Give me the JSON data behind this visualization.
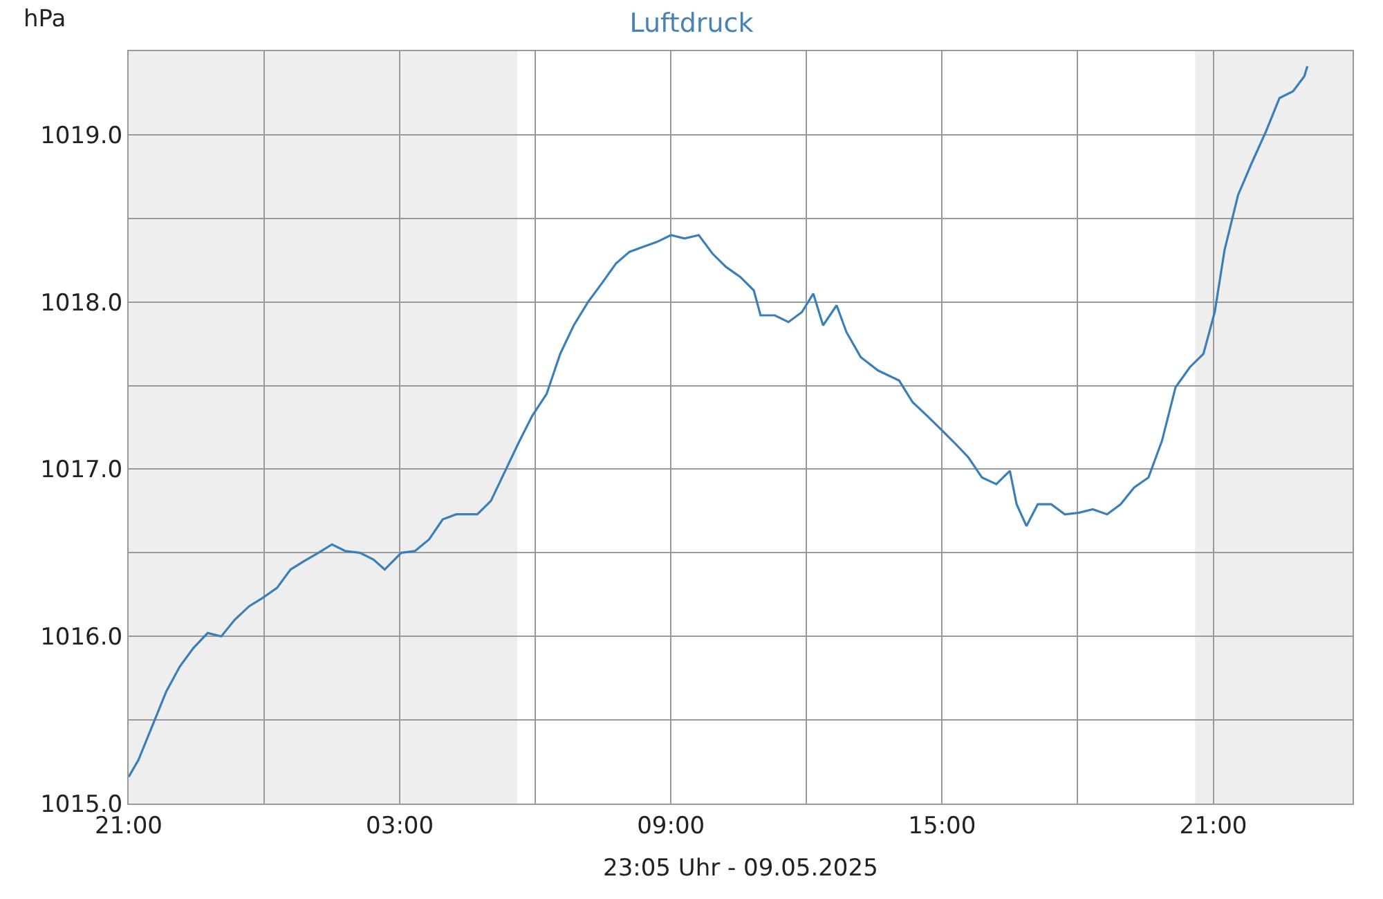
{
  "chart_data": {
    "type": "line",
    "title": "Luftdruck",
    "ylabel": "hPa",
    "annotations": [
      "23:05 Uhr - 09.05.2025"
    ],
    "xlim": [
      "2025-05-08T21:00",
      "2025-05-10T00:05"
    ],
    "ylim": [
      1015,
      1019.5
    ],
    "xticks": [
      {
        "value": "2025-05-08T21:00",
        "label": "21:00"
      },
      {
        "value": "2025-05-09T00:00",
        "label": null
      },
      {
        "value": "2025-05-09T03:00",
        "label": "03:00"
      },
      {
        "value": "2025-05-09T06:00",
        "label": null
      },
      {
        "value": "2025-05-09T09:00",
        "label": "09:00"
      },
      {
        "value": "2025-05-09T12:00",
        "label": null
      },
      {
        "value": "2025-05-09T15:00",
        "label": "15:00"
      },
      {
        "value": "2025-05-09T18:00",
        "label": null
      },
      {
        "value": "2025-05-09T21:00",
        "label": "21:00"
      }
    ],
    "yticks": [
      {
        "value": 1015,
        "label": "1015.0"
      },
      {
        "value": 1015.5,
        "label": null
      },
      {
        "value": 1016,
        "label": "1016.0"
      },
      {
        "value": 1016.5,
        "label": null
      },
      {
        "value": 1017,
        "label": "1017.0"
      },
      {
        "value": 1017.5,
        "label": null
      },
      {
        "value": 1018,
        "label": "1018.0"
      },
      {
        "value": 1018.5,
        "label": null
      },
      {
        "value": 1019,
        "label": "1019.0"
      }
    ],
    "grid": true,
    "bands": [
      {
        "axis": "x",
        "from": "2025-05-08T21:00",
        "to": "2025-05-09T05:36",
        "color": "#eeeeee"
      },
      {
        "axis": "x",
        "from": "2025-05-09T20:36",
        "to": "2025-05-10T00:05",
        "color": "#eeeeee"
      }
    ],
    "series": [
      {
        "color": "#3a7fb8",
        "x": [
          "2025-05-08T21:00",
          "2025-05-08T21:13",
          "2025-05-08T21:31",
          "2025-05-08T21:50",
          "2025-05-08T22:08",
          "2025-05-08T22:26",
          "2025-05-08T22:45",
          "2025-05-08T23:03",
          "2025-05-08T23:21",
          "2025-05-08T23:40",
          "2025-05-08T23:58",
          "2025-05-09T00:17",
          "2025-05-09T00:35",
          "2025-05-09T00:53",
          "2025-05-09T01:12",
          "2025-05-09T01:30",
          "2025-05-09T01:48",
          "2025-05-09T02:07",
          "2025-05-09T02:25",
          "2025-05-09T02:40",
          "2025-05-09T03:02",
          "2025-05-09T03:20",
          "2025-05-09T03:39",
          "2025-05-09T03:57",
          "2025-05-09T04:15",
          "2025-05-09T04:43",
          "2025-05-09T05:01",
          "2025-05-09T05:20",
          "2025-05-09T05:38",
          "2025-05-09T05:56",
          "2025-05-09T06:15",
          "2025-05-09T06:33",
          "2025-05-09T06:51",
          "2025-05-09T07:10",
          "2025-05-09T07:28",
          "2025-05-09T07:47",
          "2025-05-09T08:05",
          "2025-05-09T08:23",
          "2025-05-09T08:42",
          "2025-05-09T09:00",
          "2025-05-09T09:18",
          "2025-05-09T09:37",
          "2025-05-09T09:55",
          "2025-05-09T10:13",
          "2025-05-09T10:32",
          "2025-05-09T10:50",
          "2025-05-09T10:59",
          "2025-05-09T11:18",
          "2025-05-09T11:36",
          "2025-05-09T11:54",
          "2025-05-09T12:09",
          "2025-05-09T12:22",
          "2025-05-09T12:40",
          "2025-05-09T12:53",
          "2025-05-09T13:12",
          "2025-05-09T13:35",
          "2025-05-09T14:03",
          "2025-05-09T14:21",
          "2025-05-09T14:40",
          "2025-05-09T14:58",
          "2025-05-09T15:16",
          "2025-05-09T15:35",
          "2025-05-09T15:53",
          "2025-05-09T16:12",
          "2025-05-09T16:30",
          "2025-05-09T16:39",
          "2025-05-09T16:52",
          "2025-05-09T17:07",
          "2025-05-09T17:25",
          "2025-05-09T17:43",
          "2025-05-09T18:02",
          "2025-05-09T18:20",
          "2025-05-09T18:39",
          "2025-05-09T18:57",
          "2025-05-09T19:15",
          "2025-05-09T19:34",
          "2025-05-09T19:52",
          "2025-05-09T20:10",
          "2025-05-09T20:29",
          "2025-05-09T20:47",
          "2025-05-09T21:02",
          "2025-05-09T21:15",
          "2025-05-09T21:33",
          "2025-05-09T21:51",
          "2025-05-09T22:10",
          "2025-05-09T22:28",
          "2025-05-09T22:46",
          "2025-05-09T23:01",
          "2025-05-09T23:05"
        ],
        "values": [
          1015.16,
          1015.26,
          1015.46,
          1015.67,
          1015.82,
          1015.93,
          1016.02,
          1016.0,
          1016.1,
          1016.18,
          1016.23,
          1016.29,
          1016.4,
          1016.45,
          1016.5,
          1016.55,
          1016.51,
          1016.5,
          1016.46,
          1016.4,
          1016.5,
          1016.51,
          1016.58,
          1016.7,
          1016.73,
          1016.73,
          1016.81,
          1016.99,
          1017.16,
          1017.32,
          1017.45,
          1017.69,
          1017.86,
          1018.0,
          1018.11,
          1018.23,
          1018.3,
          1018.33,
          1018.36,
          1018.4,
          1018.38,
          1018.4,
          1018.29,
          1018.21,
          1018.15,
          1018.07,
          1017.92,
          1017.92,
          1017.88,
          1017.94,
          1018.05,
          1017.86,
          1017.98,
          1017.82,
          1017.67,
          1017.59,
          1017.53,
          1017.4,
          1017.32,
          1017.24,
          1017.16,
          1017.07,
          1016.95,
          1016.91,
          1016.99,
          1016.79,
          1016.66,
          1016.79,
          1016.79,
          1016.73,
          1016.74,
          1016.76,
          1016.73,
          1016.79,
          1016.89,
          1016.95,
          1017.17,
          1017.49,
          1017.61,
          1017.69,
          1017.94,
          1018.31,
          1018.64,
          1018.83,
          1019.02,
          1019.22,
          1019.26,
          1019.35,
          1019.41
        ]
      }
    ]
  }
}
